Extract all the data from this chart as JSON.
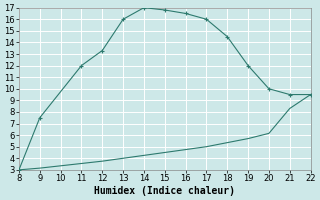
{
  "xlabel": "Humidex (Indice chaleur)",
  "background_color": "#cde8e8",
  "grid_color": "#ffffff",
  "line_color": "#2d7a6e",
  "xlim": [
    8,
    22
  ],
  "ylim": [
    3,
    17
  ],
  "xticks": [
    8,
    9,
    10,
    11,
    12,
    13,
    14,
    15,
    16,
    17,
    18,
    19,
    20,
    21,
    22
  ],
  "yticks": [
    3,
    4,
    5,
    6,
    7,
    8,
    9,
    10,
    11,
    12,
    13,
    14,
    15,
    16,
    17
  ],
  "curve1_x": [
    8,
    9,
    11,
    12,
    13,
    14,
    15,
    16,
    17,
    18,
    19,
    20,
    21,
    22
  ],
  "curve1_y": [
    3,
    7.5,
    12,
    13.3,
    16,
    17,
    16.8,
    16.5,
    16,
    14.5,
    12,
    10,
    9.5,
    9.5
  ],
  "curve2_x": [
    8,
    9,
    10,
    11,
    12,
    13,
    14,
    15,
    16,
    17,
    18,
    19,
    20,
    21,
    22
  ],
  "curve2_y": [
    3,
    3.15,
    3.35,
    3.55,
    3.75,
    4.0,
    4.25,
    4.5,
    4.75,
    5.0,
    5.35,
    5.7,
    6.15,
    8.3,
    9.5
  ],
  "fontsize_tick": 6,
  "fontsize_label": 7
}
